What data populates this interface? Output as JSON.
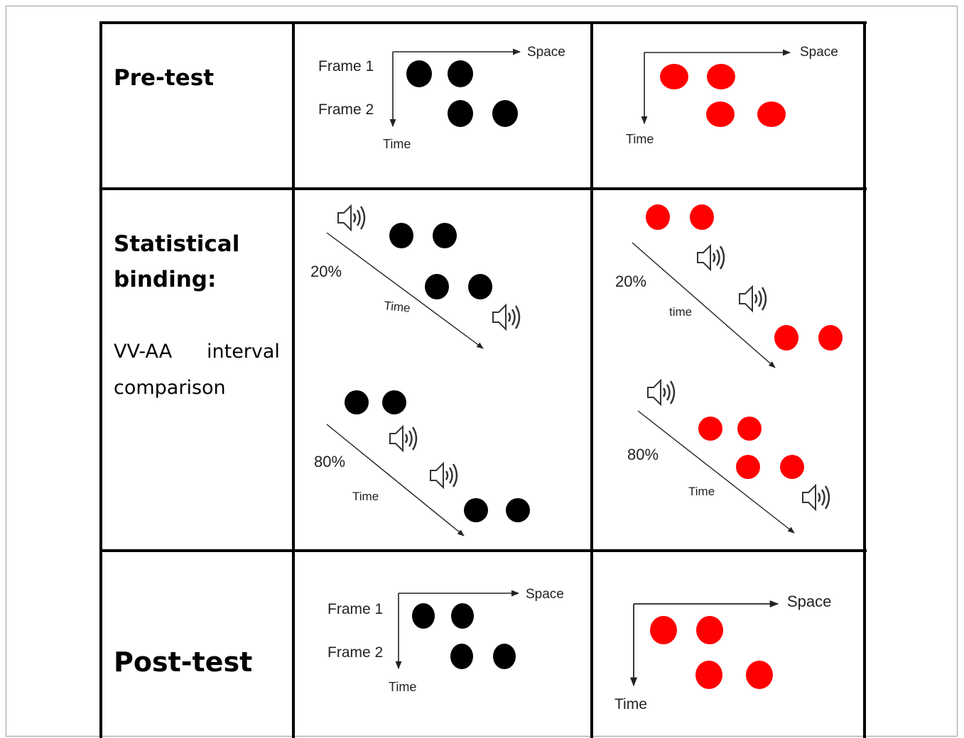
{
  "rows": {
    "pretest": {
      "label": "Pre-test"
    },
    "binding": {
      "label_line1": "Statistical",
      "label_line2": "binding:",
      "sub_line1_a": "VV-AA",
      "sub_line1_b": "interval",
      "sub_line2": "comparison"
    },
    "posttest": {
      "label": "Post-test"
    }
  },
  "axis": {
    "frame1": "Frame 1",
    "frame2": "Frame 2",
    "space": "Space",
    "time_cap": "Time",
    "time_lower": "time"
  },
  "percentages": {
    "p20": "20%",
    "p80": "80%"
  },
  "colors": {
    "black_dot": "#000000",
    "red_dot": "#ff0000",
    "grid": "#000000"
  },
  "icons": {
    "sound": "speaker-icon"
  }
}
